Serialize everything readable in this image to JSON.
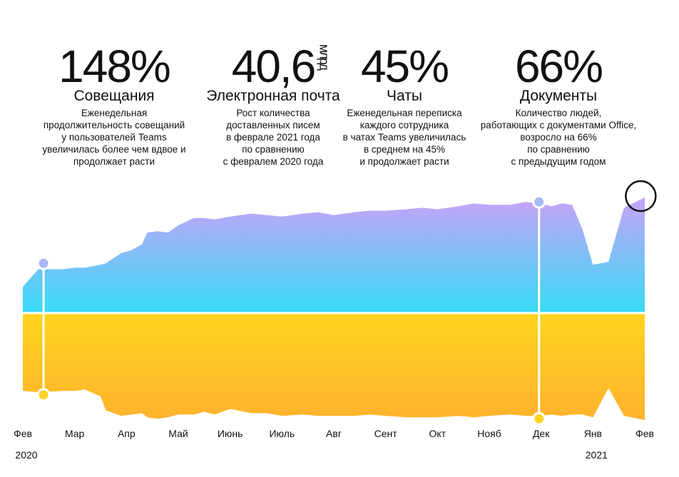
{
  "stats": [
    {
      "value": "148%",
      "unit": "",
      "label": "Совещания",
      "desc": [
        "Еженедельная",
        "продолжительность совещаний",
        "у пользователей Teams",
        "увеличилась более чем вдвое и",
        "продолжает расти"
      ]
    },
    {
      "value": "40,6",
      "unit": "млрд",
      "label": "Электронная почта",
      "desc": [
        "Рост количества",
        "доставленных писем",
        "в феврале 2021 года",
        "по сравнению",
        "с февралем 2020 года"
      ]
    },
    {
      "value": "45%",
      "unit": "",
      "label": "Чаты",
      "desc": [
        "Еженедельная переписка",
        "каждого сотрудника",
        "в чатах Teams увеличилась",
        "в среднем на 45%",
        "и продолжает расти"
      ]
    },
    {
      "value": "66%",
      "unit": "",
      "label": "Документы",
      "desc": [
        "Количество людей,",
        "работающих с документами Office,",
        "возросло на 66%",
        "по сравнению",
        "с предыдущим годом"
      ]
    }
  ],
  "chart_data": {
    "type": "area",
    "xlabel": "",
    "ylabel": "",
    "categories": [
      "Фев",
      "Мар",
      "Апр",
      "Май",
      "Июнь",
      "Июль",
      "Авг",
      "Сент",
      "Окт",
      "Нояб",
      "Дек",
      "Янв",
      "Фев"
    ],
    "year_labels": [
      {
        "at": "Фев",
        "text": "2020"
      },
      {
        "at": "Янв",
        "text": "2021"
      }
    ],
    "x": [
      0,
      0.3,
      0.8,
      1.0,
      1.2,
      1.5,
      1.6,
      1.9,
      2.1,
      2.3,
      2.4,
      2.6,
      2.8,
      3.0,
      3.3,
      3.5,
      3.7,
      4.0,
      4.4,
      4.7,
      5.0,
      5.4,
      5.7,
      6.0,
      6.4,
      6.7,
      7.0,
      7.4,
      7.7,
      8.0,
      8.4,
      8.7,
      9.0,
      9.4,
      9.7,
      9.9,
      10.0,
      10.2,
      10.4,
      10.6,
      10.8,
      11.0,
      11.3,
      11.6,
      12.0
    ],
    "series": [
      {
        "values": [
          0.18,
          0.3,
          0.3,
          0.31,
          0.31,
          0.33,
          0.34,
          0.41,
          0.43,
          0.47,
          0.55,
          0.56,
          0.55,
          0.6,
          0.65,
          0.65,
          0.64,
          0.66,
          0.68,
          0.67,
          0.66,
          0.68,
          0.69,
          0.67,
          0.69,
          0.7,
          0.7,
          0.71,
          0.72,
          0.71,
          0.73,
          0.75,
          0.74,
          0.74,
          0.76,
          0.75,
          0.75,
          0.73,
          0.75,
          0.74,
          0.57,
          0.33,
          0.35,
          0.72,
          0.79
        ]
      },
      {
        "values": [
          -0.56,
          -0.57,
          -0.56,
          -0.56,
          -0.55,
          -0.6,
          -0.7,
          -0.74,
          -0.73,
          -0.72,
          -0.75,
          -0.76,
          -0.75,
          -0.73,
          -0.73,
          -0.71,
          -0.73,
          -0.69,
          -0.72,
          -0.72,
          -0.74,
          -0.73,
          -0.74,
          -0.74,
          -0.74,
          -0.73,
          -0.74,
          -0.75,
          -0.75,
          -0.75,
          -0.74,
          -0.75,
          -0.74,
          -0.73,
          -0.74,
          -0.74,
          -0.74,
          -0.73,
          -0.74,
          -0.73,
          -0.73,
          -0.75,
          -0.54,
          -0.74,
          -0.77
        ]
      }
    ],
    "markers": [
      {
        "x": 0.4,
        "value": 0.34
      },
      {
        "x": 9.96,
        "value": 0.76
      }
    ],
    "highlight": {
      "x": 11.95,
      "value": 0.79
    },
    "colors": {
      "top_light": "#36dcf6",
      "top_dark": "#c9a2f8",
      "bottom_light": "#ffd51f",
      "bottom_dark": "#ffb22d",
      "marker_top": "#a9b9f6",
      "marker_bottom": "#ffd428"
    }
  }
}
